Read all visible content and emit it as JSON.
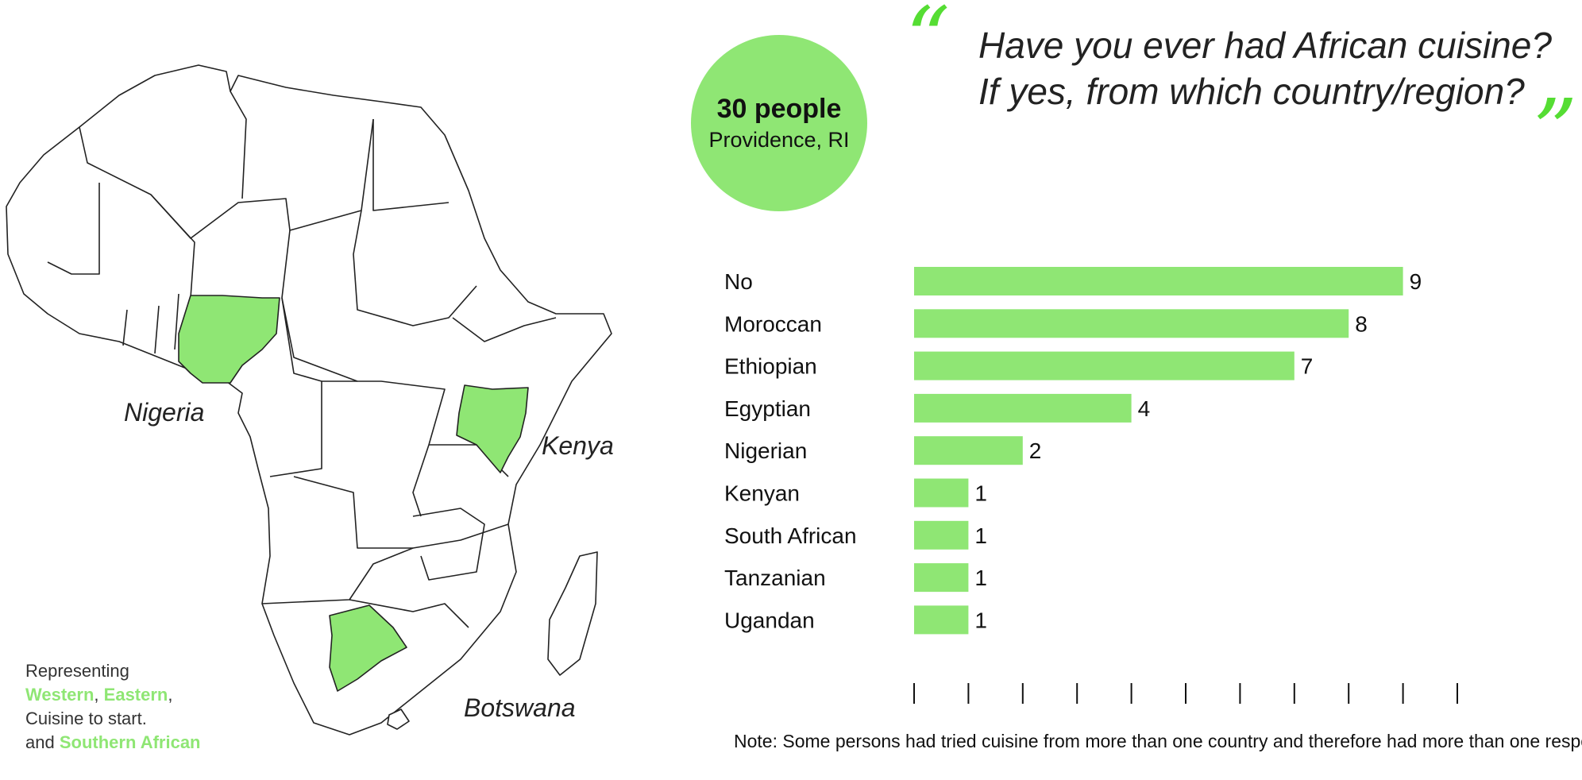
{
  "map": {
    "labels": {
      "nigeria": "Nigeria",
      "kenya": "Kenya",
      "botswana": "Botswana"
    },
    "highlight_color": "#8fe674",
    "outline_color": "#222222"
  },
  "caption": {
    "line1": "Representing",
    "western": "Western",
    "comma1": ",",
    "eastern": "Eastern",
    "comma2": ",",
    "line3": "Cuisine to start.",
    "line4_prefix": "and",
    "southern": "Southern African"
  },
  "badge": {
    "count": "30 people",
    "place": "Providence, RI",
    "color": "#8fe674"
  },
  "question": {
    "line1": "Have you ever had African cuisine?",
    "line2": "If yes, from which country/region?",
    "open_quote": "“",
    "close_quote": "”"
  },
  "chart_data": {
    "type": "bar",
    "orientation": "horizontal",
    "categories": [
      "No",
      "Moroccan",
      "Ethiopian",
      "Egyptian",
      "Nigerian",
      "Kenyan",
      "South African",
      "Tanzanian",
      "Ugandan"
    ],
    "values": [
      9,
      8,
      7,
      4,
      2,
      1,
      1,
      1,
      1
    ],
    "xlim": [
      0,
      10
    ],
    "bar_color": "#8fe674",
    "grid": false
  },
  "note": "Note: Some persons had tried cuisine from more than one country and therefore had more than one response"
}
